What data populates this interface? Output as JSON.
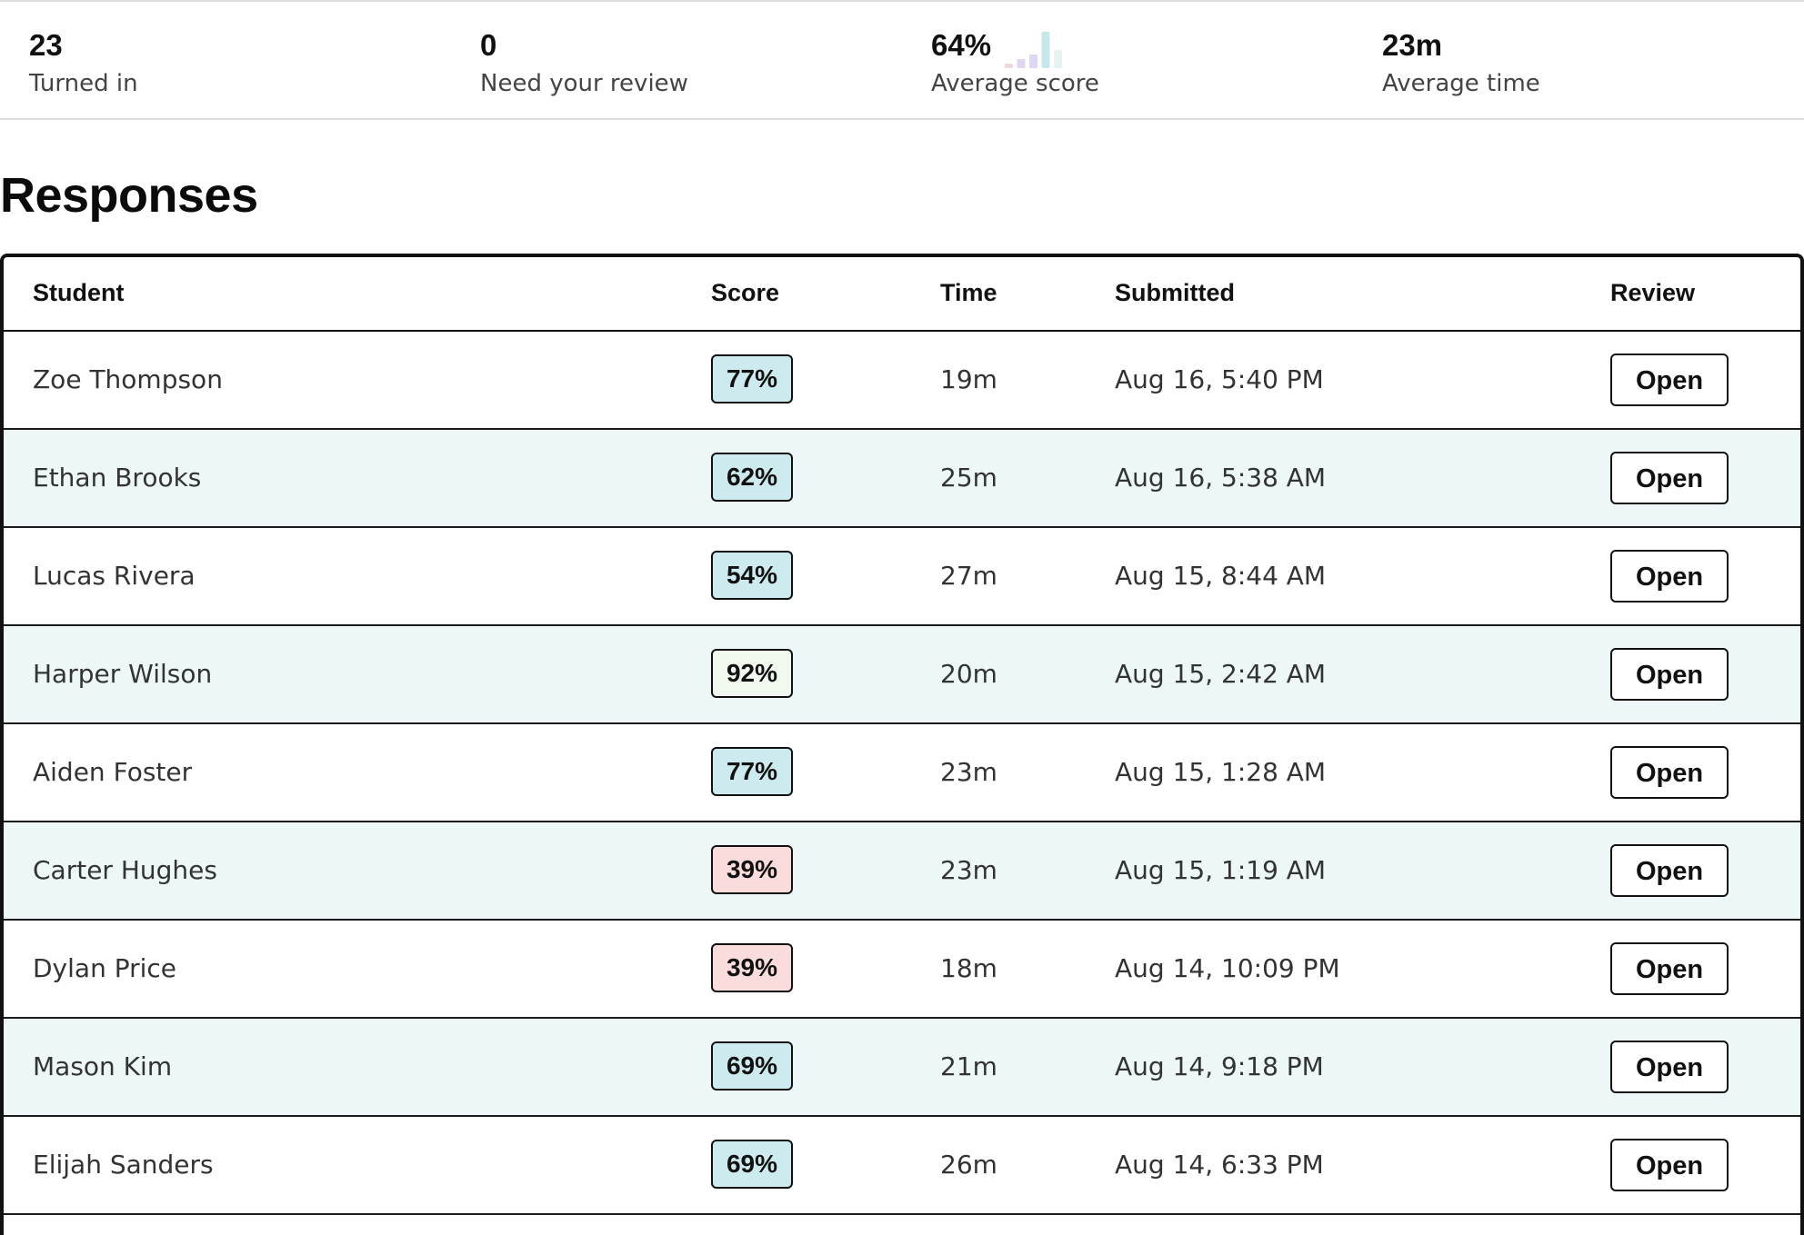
{
  "stats": [
    {
      "value": "23",
      "label": "Turned in"
    },
    {
      "value": "0",
      "label": "Need your review"
    },
    {
      "value": "64%",
      "label": "Average score"
    },
    {
      "value": "23m",
      "label": "Average time"
    }
  ],
  "score_distribution": {
    "values": [
      1,
      2,
      3,
      8,
      4
    ],
    "colors": [
      "#f0d9dc",
      "#e3d6f2",
      "#dcd7f3",
      "#c7e7ec",
      "#e6f3f1"
    ]
  },
  "responses": {
    "title": "Responses",
    "columns": {
      "student": "Student",
      "score": "Score",
      "time": "Time",
      "submitted": "Submitted",
      "review": "Review"
    },
    "score_colors": {
      "high": "#f1f8ee",
      "mid": "#cdebee",
      "low": "#fadcdc"
    },
    "rows": [
      {
        "student": "Zoe Thompson",
        "score": "77%",
        "band": "mid",
        "time": "19m",
        "submitted": "Aug 16, 5:40 PM",
        "action": "Open"
      },
      {
        "student": "Ethan Brooks",
        "score": "62%",
        "band": "mid",
        "time": "25m",
        "submitted": "Aug 16, 5:38 AM",
        "action": "Open"
      },
      {
        "student": "Lucas Rivera",
        "score": "54%",
        "band": "mid",
        "time": "27m",
        "submitted": "Aug 15, 8:44 AM",
        "action": "Open"
      },
      {
        "student": "Harper Wilson",
        "score": "92%",
        "band": "high",
        "time": "20m",
        "submitted": "Aug 15, 2:42 AM",
        "action": "Open"
      },
      {
        "student": "Aiden Foster",
        "score": "77%",
        "band": "mid",
        "time": "23m",
        "submitted": "Aug 15, 1:28 AM",
        "action": "Open"
      },
      {
        "student": "Carter Hughes",
        "score": "39%",
        "band": "low",
        "time": "23m",
        "submitted": "Aug 15, 1:19 AM",
        "action": "Open"
      },
      {
        "student": "Dylan Price",
        "score": "39%",
        "band": "low",
        "time": "18m",
        "submitted": "Aug 14, 10:09 PM",
        "action": "Open"
      },
      {
        "student": "Mason Kim",
        "score": "69%",
        "band": "mid",
        "time": "21m",
        "submitted": "Aug 14, 9:18 PM",
        "action": "Open"
      },
      {
        "student": "Elijah Sanders",
        "score": "69%",
        "band": "mid",
        "time": "26m",
        "submitted": "Aug 14, 6:33 PM",
        "action": "Open"
      }
    ]
  }
}
